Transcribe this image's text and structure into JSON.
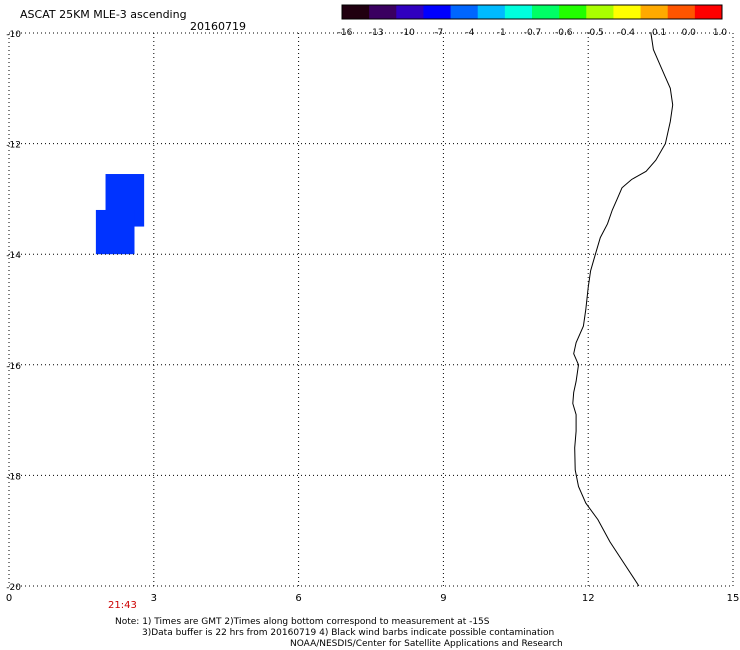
{
  "title": "ASCAT 25KM MLE-3 ascending",
  "date": "20160719",
  "colorbar": {
    "labels": [
      "-16",
      "-13",
      "-10",
      "-7",
      "-4",
      "-1",
      "-0.7",
      "-0.6",
      "-0.5",
      "-0.4",
      "-0.1",
      "0.0",
      "1.0"
    ],
    "colors": [
      "#200010",
      "#3a0060",
      "#3000c0",
      "#0000ff",
      "#0066ff",
      "#00bbff",
      "#00ffdd",
      "#00ff66",
      "#22ff00",
      "#aaff00",
      "#ffff00",
      "#ffaa00",
      "#ff5500",
      "#ff0000"
    ]
  },
  "map": {
    "x_ticks": [
      "0",
      "3",
      "6",
      "9",
      "12",
      "15"
    ],
    "y_ticks": [
      "-10",
      "-12",
      "-14",
      "-16",
      "-18",
      "-20"
    ],
    "x_range": [
      0,
      15
    ],
    "y_range": [
      -10,
      -20
    ],
    "data_color": "#0033ff",
    "data_patches": [
      {
        "lon": [
          2.0,
          2.8
        ],
        "lat": [
          -12.55,
          -13.5
        ]
      },
      {
        "lon": [
          1.8,
          2.6
        ],
        "lat": [
          -13.2,
          -14.0
        ]
      }
    ],
    "coastline": [
      [
        13.3,
        -10.0
      ],
      [
        13.35,
        -10.3
      ],
      [
        13.5,
        -10.6
      ],
      [
        13.6,
        -10.8
      ],
      [
        13.7,
        -11.0
      ],
      [
        13.75,
        -11.3
      ],
      [
        13.7,
        -11.6
      ],
      [
        13.6,
        -12.0
      ],
      [
        13.4,
        -12.3
      ],
      [
        13.2,
        -12.5
      ],
      [
        12.9,
        -12.65
      ],
      [
        12.7,
        -12.8
      ],
      [
        12.6,
        -13.0
      ],
      [
        12.5,
        -13.2
      ],
      [
        12.4,
        -13.45
      ],
      [
        12.25,
        -13.7
      ],
      [
        12.15,
        -14.0
      ],
      [
        12.05,
        -14.3
      ],
      [
        12.0,
        -14.6
      ],
      [
        11.95,
        -15.0
      ],
      [
        11.9,
        -15.3
      ],
      [
        11.75,
        -15.6
      ],
      [
        11.7,
        -15.8
      ],
      [
        11.8,
        -16.0
      ],
      [
        11.75,
        -16.3
      ],
      [
        11.7,
        -16.5
      ],
      [
        11.68,
        -16.7
      ],
      [
        11.75,
        -16.9
      ],
      [
        11.75,
        -17.2
      ],
      [
        11.72,
        -17.5
      ],
      [
        11.73,
        -17.9
      ],
      [
        11.8,
        -18.2
      ],
      [
        11.95,
        -18.5
      ],
      [
        12.2,
        -18.8
      ],
      [
        12.45,
        -19.2
      ],
      [
        12.75,
        -19.6
      ],
      [
        13.05,
        -20.0
      ]
    ]
  },
  "time_label": "21:43",
  "notes": [
    "Note: 1) Times are GMT 2)Times along bottom correspond to measurement at -15S",
    "3)Data buffer is 22 hrs from 20160719 4) Black wind barbs indicate possible contamination",
    "NOAA/NESDIS/Center for Satellite Applications and Research"
  ]
}
